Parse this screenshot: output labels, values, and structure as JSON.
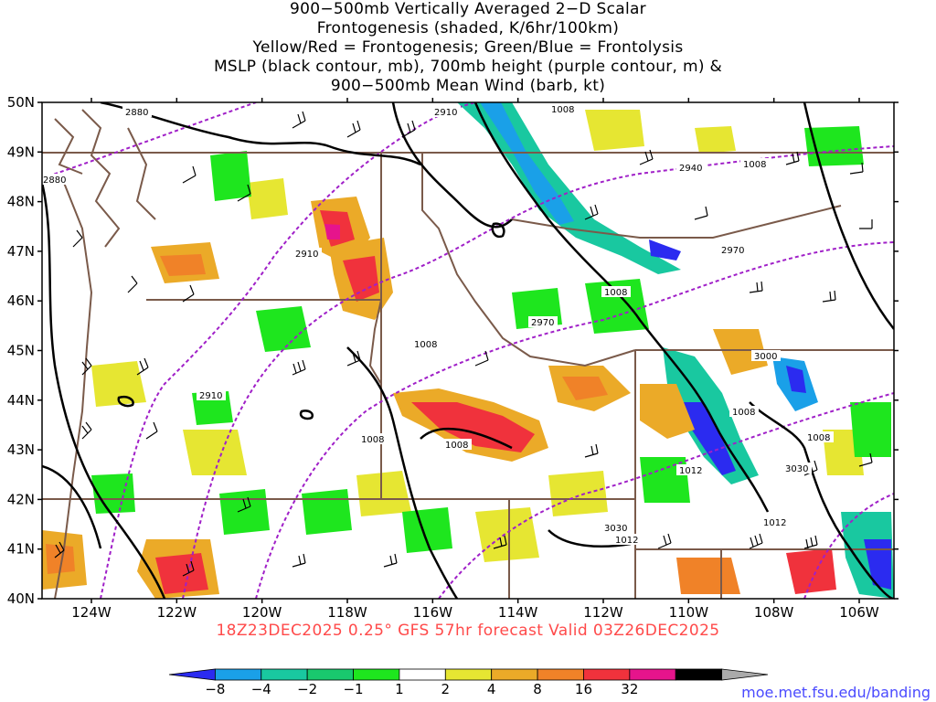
{
  "title": {
    "lines": [
      "900−500mb Vertically Averaged 2−D Scalar",
      "Frontogenesis (shaded, K/6hr/100km)",
      "Yellow/Red = Frontogenesis;  Green/Blue = Frontolysis",
      "MSLP (black contour, mb), 700mb height (purple contour, m) &",
      "900−500mb Mean Wind (barb, kt)"
    ]
  },
  "valid_line": "18Z23DEC2025 0.25° GFS 57hr forecast Valid 03Z26DEC2025",
  "credit": "moe.met.fsu.edu/banding",
  "axes": {
    "lat_labels": [
      "50N",
      "49N",
      "48N",
      "47N",
      "46N",
      "45N",
      "44N",
      "43N",
      "42N",
      "41N",
      "40N"
    ],
    "lon_labels": [
      "124W",
      "122W",
      "120W",
      "118W",
      "116W",
      "114W",
      "112W",
      "110W",
      "108W",
      "106W"
    ]
  },
  "colorbar": {
    "labels": [
      "−8",
      "−4",
      "−2",
      "−1",
      "1",
      "2",
      "4",
      "8",
      "16",
      "32"
    ],
    "colors": [
      "#2b2bf0",
      "#1aa0e8",
      "#19c8a0",
      "#19c86e",
      "#1ee61e",
      "#ffffff",
      "#e6e632",
      "#ebaa28",
      "#f08228",
      "#f0323c",
      "#e6148c",
      "#000000",
      "#aaaaaa"
    ]
  },
  "contour_labels": {
    "mslp": [
      "1008",
      "1008",
      "1008",
      "1008",
      "1008",
      "1008",
      "1008",
      "1008",
      "1012",
      "1012",
      "1012"
    ],
    "height": [
      "2880",
      "2880",
      "2910",
      "2910",
      "2910",
      "2940",
      "2970",
      "2970",
      "3000",
      "3030",
      "3030"
    ]
  },
  "colors": {
    "state_lines": "#7a5a4a",
    "mslp": "#000000",
    "height": "#a020c8",
    "barb": "#000000"
  }
}
